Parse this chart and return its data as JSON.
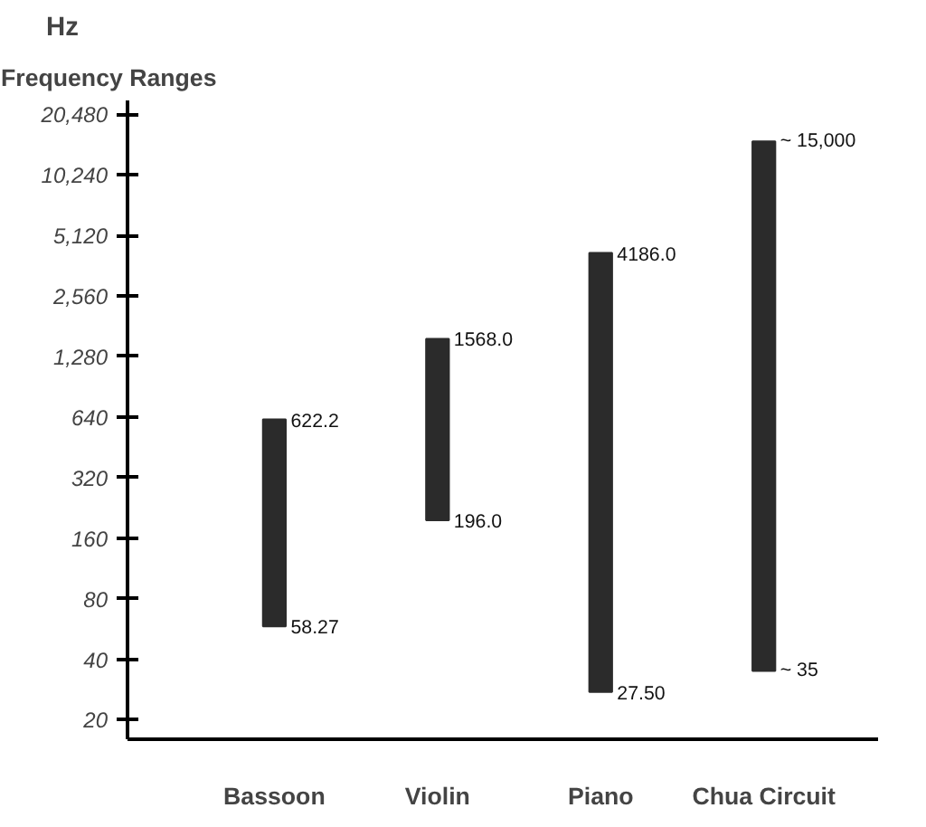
{
  "chart_data": {
    "type": "bar",
    "title": "Frequency Ranges",
    "ylabel": "Hz",
    "categories": [
      "Bassoon",
      "Violin",
      "Piano",
      "Chua Circuit"
    ],
    "base": [
      58.27,
      196.0,
      27.5,
      35
    ],
    "values": [
      563.93,
      1372.0,
      4158.5,
      14965
    ],
    "color": "#2b2b2b",
    "log": true,
    "grid": false,
    "ylim": [
      16,
      24000
    ],
    "yticks": [
      20,
      40,
      80,
      160,
      320,
      640,
      {
        "value": 1280,
        "label": "1,280"
      },
      {
        "value": 2560,
        "label": "2,560"
      },
      {
        "value": 5120,
        "label": "5,120"
      },
      {
        "value": 10240,
        "label": "10,240"
      },
      {
        "value": 20480,
        "label": "20,480"
      }
    ],
    "annotations": [
      {
        "text": "622.2",
        "x": "Bassoon",
        "y": 622.2
      },
      {
        "text": "58.27",
        "x": "Bassoon",
        "y": 58.27
      },
      {
        "text": "1568.0",
        "x": "Violin",
        "y": 1568.0
      },
      {
        "text": "196.0",
        "x": "Violin",
        "y": 196.0
      },
      {
        "text": "4186.0",
        "x": "Piano",
        "y": 4186.0
      },
      {
        "text": "27.50",
        "x": "Piano",
        "y": 27.5
      },
      {
        "text": "~ 15,000",
        "x": "Chua Circuit",
        "y": 15000
      },
      {
        "text": "~ 35",
        "x": "Chua Circuit",
        "y": 35
      }
    ]
  }
}
